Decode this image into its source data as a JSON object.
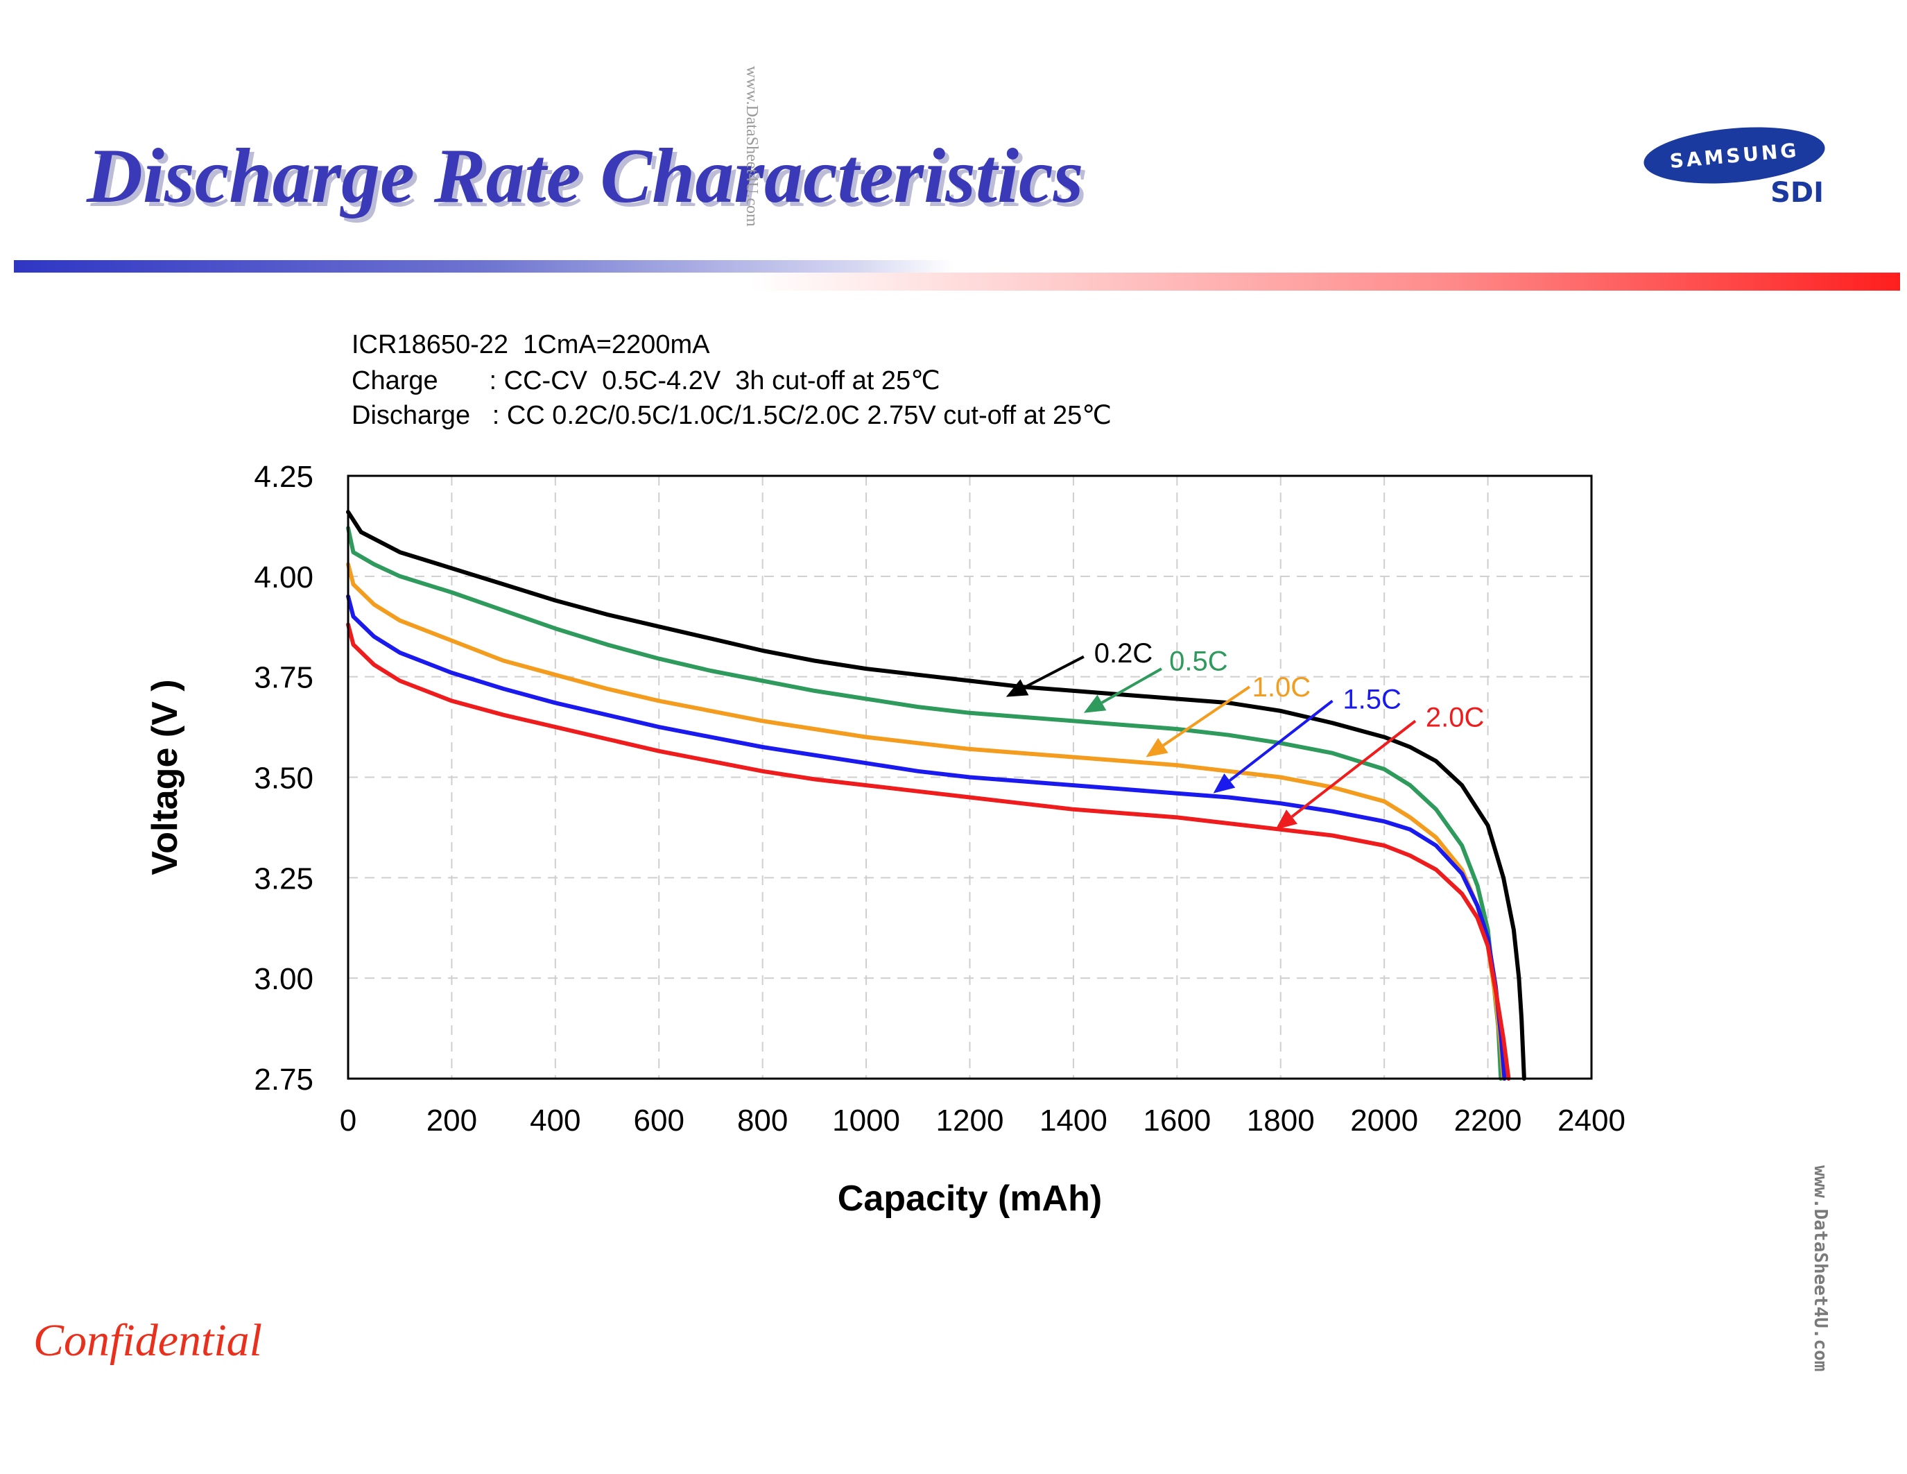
{
  "page": {
    "title": "Discharge Rate Characteristics",
    "logo_word": "SAMSUNG",
    "logo_sub": "SDI",
    "watermark": "www.DataSheet4U.com",
    "footer": "Confidential",
    "spec_lines": [
      "ICR18650-22  1CmA=2200mA",
      "Charge       : CC-CV  0.5C-4.2V  3h cut-off at 25℃",
      "Discharge   : CC 0.2C/0.5C/1.0C/1.5C/2.0C 2.75V cut-off at 25℃"
    ]
  },
  "chart_data": {
    "type": "line",
    "xlabel": "Capacity (mAh)",
    "ylabel": "Voltage (V )",
    "xlim": [
      0,
      2400
    ],
    "ylim": [
      2.75,
      4.25
    ],
    "xticks": [
      "0",
      "200",
      "400",
      "600",
      "800",
      "1000",
      "1200",
      "1400",
      "1600",
      "1800",
      "2000",
      "2200",
      "2400"
    ],
    "yticks": [
      "4.25",
      "4.00",
      "3.75",
      "3.50",
      "3.25",
      "3.00",
      "2.75"
    ],
    "grid": true,
    "series": [
      {
        "name": "0.2C",
        "color": "#000000",
        "points": [
          [
            0,
            4.16
          ],
          [
            25,
            4.11
          ],
          [
            100,
            4.06
          ],
          [
            200,
            4.02
          ],
          [
            300,
            3.98
          ],
          [
            400,
            3.94
          ],
          [
            500,
            3.905
          ],
          [
            600,
            3.875
          ],
          [
            700,
            3.845
          ],
          [
            800,
            3.815
          ],
          [
            900,
            3.79
          ],
          [
            1000,
            3.77
          ],
          [
            1100,
            3.755
          ],
          [
            1200,
            3.74
          ],
          [
            1300,
            3.725
          ],
          [
            1400,
            3.715
          ],
          [
            1500,
            3.705
          ],
          [
            1600,
            3.695
          ],
          [
            1700,
            3.685
          ],
          [
            1800,
            3.665
          ],
          [
            1900,
            3.635
          ],
          [
            2000,
            3.6
          ],
          [
            2050,
            3.575
          ],
          [
            2100,
            3.54
          ],
          [
            2150,
            3.48
          ],
          [
            2200,
            3.38
          ],
          [
            2230,
            3.25
          ],
          [
            2250,
            3.12
          ],
          [
            2260,
            3.0
          ],
          [
            2265,
            2.9
          ],
          [
            2270,
            2.75
          ]
        ]
      },
      {
        "name": "0.5C",
        "color": "#2e9a5c",
        "points": [
          [
            0,
            4.12
          ],
          [
            10,
            4.06
          ],
          [
            50,
            4.03
          ],
          [
            100,
            4.0
          ],
          [
            200,
            3.96
          ],
          [
            300,
            3.915
          ],
          [
            400,
            3.87
          ],
          [
            500,
            3.83
          ],
          [
            600,
            3.795
          ],
          [
            700,
            3.765
          ],
          [
            800,
            3.74
          ],
          [
            900,
            3.715
          ],
          [
            1000,
            3.695
          ],
          [
            1100,
            3.675
          ],
          [
            1200,
            3.66
          ],
          [
            1300,
            3.65
          ],
          [
            1400,
            3.64
          ],
          [
            1500,
            3.63
          ],
          [
            1600,
            3.62
          ],
          [
            1700,
            3.605
          ],
          [
            1800,
            3.585
          ],
          [
            1900,
            3.56
          ],
          [
            2000,
            3.52
          ],
          [
            2050,
            3.48
          ],
          [
            2100,
            3.42
          ],
          [
            2150,
            3.33
          ],
          [
            2180,
            3.23
          ],
          [
            2200,
            3.12
          ],
          [
            2210,
            3.0
          ],
          [
            2220,
            2.88
          ],
          [
            2225,
            2.75
          ]
        ]
      },
      {
        "name": "1.0C",
        "color": "#f39c1e",
        "points": [
          [
            0,
            4.03
          ],
          [
            10,
            3.98
          ],
          [
            50,
            3.93
          ],
          [
            100,
            3.89
          ],
          [
            200,
            3.84
          ],
          [
            300,
            3.79
          ],
          [
            400,
            3.755
          ],
          [
            500,
            3.72
          ],
          [
            600,
            3.69
          ],
          [
            700,
            3.665
          ],
          [
            800,
            3.64
          ],
          [
            900,
            3.62
          ],
          [
            1000,
            3.6
          ],
          [
            1100,
            3.585
          ],
          [
            1200,
            3.57
          ],
          [
            1300,
            3.56
          ],
          [
            1400,
            3.55
          ],
          [
            1500,
            3.54
          ],
          [
            1600,
            3.53
          ],
          [
            1700,
            3.515
          ],
          [
            1800,
            3.5
          ],
          [
            1900,
            3.475
          ],
          [
            2000,
            3.44
          ],
          [
            2050,
            3.4
          ],
          [
            2100,
            3.35
          ],
          [
            2150,
            3.27
          ],
          [
            2180,
            3.18
          ],
          [
            2200,
            3.08
          ],
          [
            2215,
            2.95
          ],
          [
            2225,
            2.83
          ],
          [
            2230,
            2.75
          ]
        ]
      },
      {
        "name": "1.5C",
        "color": "#1a1aee",
        "points": [
          [
            0,
            3.95
          ],
          [
            10,
            3.9
          ],
          [
            50,
            3.85
          ],
          [
            100,
            3.81
          ],
          [
            200,
            3.76
          ],
          [
            300,
            3.72
          ],
          [
            400,
            3.685
          ],
          [
            500,
            3.655
          ],
          [
            600,
            3.625
          ],
          [
            700,
            3.6
          ],
          [
            800,
            3.575
          ],
          [
            900,
            3.555
          ],
          [
            1000,
            3.535
          ],
          [
            1100,
            3.515
          ],
          [
            1200,
            3.5
          ],
          [
            1300,
            3.49
          ],
          [
            1400,
            3.48
          ],
          [
            1500,
            3.47
          ],
          [
            1600,
            3.46
          ],
          [
            1700,
            3.45
          ],
          [
            1800,
            3.435
          ],
          [
            1900,
            3.415
          ],
          [
            2000,
            3.39
          ],
          [
            2050,
            3.37
          ],
          [
            2100,
            3.33
          ],
          [
            2150,
            3.26
          ],
          [
            2180,
            3.18
          ],
          [
            2200,
            3.1
          ],
          [
            2215,
            2.98
          ],
          [
            2225,
            2.86
          ],
          [
            2232,
            2.75
          ]
        ]
      },
      {
        "name": "2.0C",
        "color": "#ee1c1c",
        "points": [
          [
            0,
            3.88
          ],
          [
            10,
            3.83
          ],
          [
            50,
            3.78
          ],
          [
            100,
            3.74
          ],
          [
            200,
            3.69
          ],
          [
            300,
            3.655
          ],
          [
            400,
            3.625
          ],
          [
            500,
            3.595
          ],
          [
            600,
            3.565
          ],
          [
            700,
            3.54
          ],
          [
            800,
            3.515
          ],
          [
            900,
            3.495
          ],
          [
            1000,
            3.48
          ],
          [
            1100,
            3.465
          ],
          [
            1200,
            3.45
          ],
          [
            1300,
            3.435
          ],
          [
            1400,
            3.42
          ],
          [
            1500,
            3.41
          ],
          [
            1600,
            3.4
          ],
          [
            1700,
            3.385
          ],
          [
            1800,
            3.37
          ],
          [
            1900,
            3.355
          ],
          [
            2000,
            3.33
          ],
          [
            2050,
            3.305
          ],
          [
            2100,
            3.27
          ],
          [
            2150,
            3.21
          ],
          [
            2180,
            3.15
          ],
          [
            2200,
            3.08
          ],
          [
            2215,
            2.97
          ],
          [
            2230,
            2.85
          ],
          [
            2240,
            2.75
          ]
        ]
      }
    ],
    "annotations": [
      {
        "label": "0.2C",
        "color": "#000000",
        "from": [
          1420,
          3.8
        ],
        "to": [
          1270,
          3.7
        ],
        "text_at": [
          1440,
          3.81
        ]
      },
      {
        "label": "0.5C",
        "color": "#2e9a5c",
        "from": [
          1570,
          3.77
        ],
        "to": [
          1420,
          3.66
        ],
        "text_at": [
          1585,
          3.79
        ]
      },
      {
        "label": "1.0C",
        "color": "#f39c1e",
        "from": [
          1740,
          3.725
        ],
        "to": [
          1540,
          3.55
        ],
        "text_at": [
          1745,
          3.725
        ]
      },
      {
        "label": "1.5C",
        "color": "#1a1aee",
        "from": [
          1900,
          3.69
        ],
        "to": [
          1670,
          3.46
        ],
        "text_at": [
          1920,
          3.695
        ]
      },
      {
        "label": "2.0C",
        "color": "#ee1c1c",
        "from": [
          2060,
          3.64
        ],
        "to": [
          1790,
          3.37
        ],
        "text_at": [
          2080,
          3.65
        ]
      }
    ]
  }
}
